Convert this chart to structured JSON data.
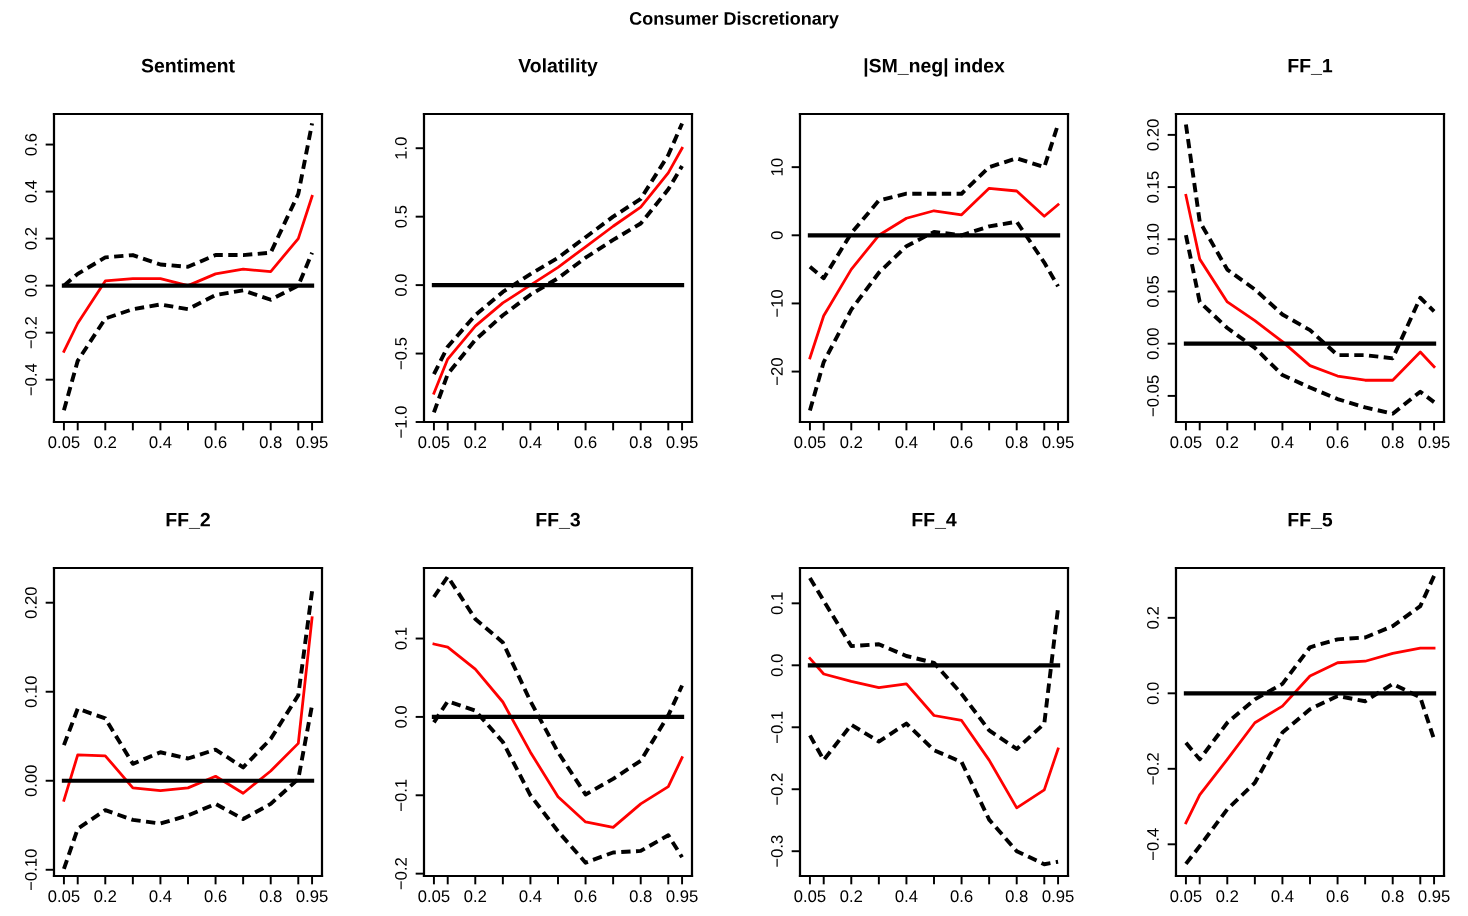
{
  "chart_data": [
    {
      "type": "line",
      "title": "Sentiment",
      "annotations": [
        "Consumer Discretionary"
      ],
      "x": [
        0.05,
        0.1,
        0.2,
        0.3,
        0.4,
        0.5,
        0.6,
        0.7,
        0.8,
        0.9,
        0.95
      ],
      "xlim": [
        0.014,
        0.986
      ],
      "xticks": [
        {
          "value": 0.05,
          "label": "0.05"
        },
        {
          "value": 0.1,
          "label": null
        },
        {
          "value": 0.2,
          "label": "0.2"
        },
        {
          "value": 0.3,
          "label": null
        },
        {
          "value": 0.4,
          "label": "0.4"
        },
        {
          "value": 0.5,
          "label": null
        },
        {
          "value": 0.6,
          "label": "0.6"
        },
        {
          "value": 0.7,
          "label": null
        },
        {
          "value": 0.8,
          "label": "0.8"
        },
        {
          "value": 0.9,
          "label": null
        },
        {
          "value": 0.95,
          "label": "0.95"
        }
      ],
      "ylim": [
        -0.58,
        0.73
      ],
      "yticks": [
        {
          "value": -0.4,
          "label": "−0.4"
        },
        {
          "value": -0.2,
          "label": "−0.2"
        },
        {
          "value": 0,
          "label": "0.0"
        },
        {
          "value": 0.2,
          "label": "0.2"
        },
        {
          "value": 0.4,
          "label": "0.4"
        },
        {
          "value": 0.6,
          "label": "0.6"
        }
      ],
      "ref_lines": [
        {
          "axis": "y",
          "value": 0,
          "color": "#000000"
        }
      ],
      "series": [
        {
          "color": "#ff0000",
          "line_style": "solid",
          "values": [
            -0.28,
            -0.16,
            0.02,
            0.03,
            0.03,
            0.0,
            0.05,
            0.07,
            0.06,
            0.2,
            0.38
          ]
        },
        {
          "color": "#000000",
          "line_style": "dashed",
          "values": [
            0.0,
            0.05,
            0.12,
            0.13,
            0.09,
            0.08,
            0.13,
            0.13,
            0.14,
            0.39,
            0.69
          ]
        },
        {
          "color": "#000000",
          "line_style": "dashed",
          "values": [
            -0.53,
            -0.32,
            -0.14,
            -0.1,
            -0.08,
            -0.1,
            -0.04,
            -0.02,
            -0.06,
            0.0,
            0.14
          ]
        }
      ]
    },
    {
      "type": "line",
      "title": "Volatility",
      "x": [
        0.05,
        0.1,
        0.2,
        0.3,
        0.4,
        0.5,
        0.6,
        0.7,
        0.8,
        0.9,
        0.95
      ],
      "xlim": [
        0.014,
        0.986
      ],
      "xticks": [
        {
          "value": 0.05,
          "label": "0.05"
        },
        {
          "value": 0.1,
          "label": null
        },
        {
          "value": 0.2,
          "label": "0.2"
        },
        {
          "value": 0.3,
          "label": null
        },
        {
          "value": 0.4,
          "label": "0.4"
        },
        {
          "value": 0.5,
          "label": null
        },
        {
          "value": 0.6,
          "label": "0.6"
        },
        {
          "value": 0.7,
          "label": null
        },
        {
          "value": 0.8,
          "label": "0.8"
        },
        {
          "value": 0.9,
          "label": null
        },
        {
          "value": 0.95,
          "label": "0.95"
        }
      ],
      "ylim": [
        -1.0,
        1.25
      ],
      "yticks": [
        {
          "value": -1,
          "label": "−1.0"
        },
        {
          "value": -0.5,
          "label": "−0.5"
        },
        {
          "value": 0,
          "label": "0.0"
        },
        {
          "value": 0.5,
          "label": "0.5"
        },
        {
          "value": 1,
          "label": "1.0"
        }
      ],
      "ref_lines": [
        {
          "axis": "y",
          "value": 0,
          "color": "#000000"
        }
      ],
      "series": [
        {
          "color": "#ff0000",
          "line_style": "solid",
          "values": [
            -0.79,
            -0.54,
            -0.3,
            -0.13,
            0.0,
            0.13,
            0.28,
            0.43,
            0.57,
            0.82,
            1.0
          ]
        },
        {
          "color": "#000000",
          "line_style": "dashed",
          "values": [
            -0.65,
            -0.45,
            -0.22,
            -0.05,
            0.08,
            0.2,
            0.35,
            0.5,
            0.63,
            0.95,
            1.18
          ]
        },
        {
          "color": "#000000",
          "line_style": "dashed",
          "values": [
            -0.93,
            -0.65,
            -0.4,
            -0.22,
            -0.07,
            0.05,
            0.2,
            0.33,
            0.45,
            0.7,
            0.87
          ]
        }
      ]
    },
    {
      "type": "line",
      "title": "|SM_neg| index",
      "x": [
        0.05,
        0.1,
        0.2,
        0.3,
        0.4,
        0.5,
        0.6,
        0.7,
        0.8,
        0.9,
        0.95
      ],
      "xlim": [
        0.014,
        0.986
      ],
      "xticks": [
        {
          "value": 0.05,
          "label": "0.05"
        },
        {
          "value": 0.1,
          "label": null
        },
        {
          "value": 0.2,
          "label": "0.2"
        },
        {
          "value": 0.3,
          "label": null
        },
        {
          "value": 0.4,
          "label": "0.4"
        },
        {
          "value": 0.5,
          "label": null
        },
        {
          "value": 0.6,
          "label": "0.6"
        },
        {
          "value": 0.7,
          "label": null
        },
        {
          "value": 0.8,
          "label": "0.8"
        },
        {
          "value": 0.9,
          "label": null
        },
        {
          "value": 0.95,
          "label": "0.95"
        }
      ],
      "ylim": [
        -27.4,
        17.8
      ],
      "yticks": [
        {
          "value": -20,
          "label": "−20"
        },
        {
          "value": -10,
          "label": "−10"
        },
        {
          "value": 0,
          "label": "0"
        },
        {
          "value": 10,
          "label": "10"
        }
      ],
      "ref_lines": [
        {
          "axis": "y",
          "value": 0,
          "color": "#000000"
        }
      ],
      "series": [
        {
          "color": "#ff0000",
          "line_style": "solid",
          "values": [
            -18,
            -11.8,
            -5,
            0,
            2.5,
            3.6,
            3,
            6.9,
            6.5,
            2.8,
            4.5
          ]
        },
        {
          "color": "#000000",
          "line_style": "dashed",
          "values": [
            -4.6,
            -6.3,
            0.3,
            5.1,
            6.1,
            6.1,
            6.1,
            10,
            11.3,
            10,
            16.3
          ]
        },
        {
          "color": "#000000",
          "line_style": "dashed",
          "values": [
            -25.7,
            -18.6,
            -10.9,
            -5.5,
            -1.6,
            0.5,
            0,
            1.3,
            2,
            -4,
            -7.5
          ]
        }
      ]
    },
    {
      "type": "line",
      "title": "FF_1",
      "x": [
        0.05,
        0.1,
        0.2,
        0.3,
        0.4,
        0.5,
        0.6,
        0.7,
        0.8,
        0.9,
        0.95
      ],
      "xlim": [
        0.014,
        0.986
      ],
      "xticks": [
        {
          "value": 0.05,
          "label": "0.05"
        },
        {
          "value": 0.1,
          "label": null
        },
        {
          "value": 0.2,
          "label": "0.2"
        },
        {
          "value": 0.3,
          "label": null
        },
        {
          "value": 0.4,
          "label": "0.4"
        },
        {
          "value": 0.5,
          "label": null
        },
        {
          "value": 0.6,
          "label": "0.6"
        },
        {
          "value": 0.7,
          "label": null
        },
        {
          "value": 0.8,
          "label": "0.8"
        },
        {
          "value": 0.9,
          "label": null
        },
        {
          "value": 0.95,
          "label": "0.95"
        }
      ],
      "ylim": [
        -0.075,
        0.22
      ],
      "yticks": [
        {
          "value": -0.05,
          "label": "−0.05"
        },
        {
          "value": 0,
          "label": "0.00"
        },
        {
          "value": 0.05,
          "label": "0.05"
        },
        {
          "value": 0.1,
          "label": "0.10"
        },
        {
          "value": 0.15,
          "label": "0.15"
        },
        {
          "value": 0.2,
          "label": "0.20"
        }
      ],
      "ref_lines": [
        {
          "axis": "y",
          "value": 0,
          "color": "#000000"
        }
      ],
      "series": [
        {
          "color": "#ff0000",
          "line_style": "solid",
          "values": [
            0.142,
            0.081,
            0.04,
            0.022,
            0.002,
            -0.021,
            -0.031,
            -0.035,
            -0.035,
            -0.008,
            -0.022
          ]
        },
        {
          "color": "#000000",
          "line_style": "dashed",
          "values": [
            0.21,
            0.117,
            0.071,
            0.052,
            0.028,
            0.013,
            -0.011,
            -0.011,
            -0.014,
            0.044,
            0.031
          ]
        },
        {
          "color": "#000000",
          "line_style": "dashed",
          "values": [
            0.104,
            0.04,
            0.015,
            -0.004,
            -0.03,
            -0.042,
            -0.053,
            -0.061,
            -0.067,
            -0.046,
            -0.056
          ]
        }
      ]
    },
    {
      "type": "line",
      "title": "FF_2",
      "x": [
        0.05,
        0.1,
        0.2,
        0.3,
        0.4,
        0.5,
        0.6,
        0.7,
        0.8,
        0.9,
        0.95
      ],
      "xlim": [
        0.014,
        0.986
      ],
      "xticks": [
        {
          "value": 0.05,
          "label": "0.05"
        },
        {
          "value": 0.1,
          "label": null
        },
        {
          "value": 0.2,
          "label": "0.2"
        },
        {
          "value": 0.3,
          "label": null
        },
        {
          "value": 0.4,
          "label": "0.4"
        },
        {
          "value": 0.5,
          "label": null
        },
        {
          "value": 0.6,
          "label": "0.6"
        },
        {
          "value": 0.7,
          "label": null
        },
        {
          "value": 0.8,
          "label": "0.8"
        },
        {
          "value": 0.9,
          "label": null
        },
        {
          "value": 0.95,
          "label": "0.95"
        }
      ],
      "ylim": [
        -0.107,
        0.239
      ],
      "yticks": [
        {
          "value": -0.1,
          "label": "−0.10"
        },
        {
          "value": 0,
          "label": "0.00"
        },
        {
          "value": 0.1,
          "label": "0.10"
        },
        {
          "value": 0.2,
          "label": "0.20"
        }
      ],
      "ref_lines": [
        {
          "axis": "y",
          "value": 0,
          "color": "#000000"
        }
      ],
      "series": [
        {
          "color": "#ff0000",
          "line_style": "solid",
          "values": [
            -0.022,
            0.029,
            0.028,
            -0.008,
            -0.011,
            -0.008,
            0.005,
            -0.014,
            0.011,
            0.042,
            0.183
          ]
        },
        {
          "color": "#000000",
          "line_style": "dashed",
          "values": [
            0.04,
            0.081,
            0.07,
            0.019,
            0.032,
            0.025,
            0.035,
            0.015,
            0.047,
            0.096,
            0.213
          ]
        },
        {
          "color": "#000000",
          "line_style": "dashed",
          "values": [
            -0.099,
            -0.054,
            -0.033,
            -0.044,
            -0.048,
            -0.039,
            -0.026,
            -0.043,
            -0.026,
            0.002,
            0.085
          ]
        }
      ]
    },
    {
      "type": "line",
      "title": "FF_3",
      "x": [
        0.05,
        0.1,
        0.2,
        0.3,
        0.4,
        0.5,
        0.6,
        0.7,
        0.8,
        0.9,
        0.95
      ],
      "xlim": [
        0.014,
        0.986
      ],
      "xticks": [
        {
          "value": 0.05,
          "label": "0.05"
        },
        {
          "value": 0.1,
          "label": null
        },
        {
          "value": 0.2,
          "label": "0.2"
        },
        {
          "value": 0.3,
          "label": null
        },
        {
          "value": 0.4,
          "label": "0.4"
        },
        {
          "value": 0.5,
          "label": null
        },
        {
          "value": 0.6,
          "label": "0.6"
        },
        {
          "value": 0.7,
          "label": null
        },
        {
          "value": 0.8,
          "label": "0.8"
        },
        {
          "value": 0.9,
          "label": null
        },
        {
          "value": 0.95,
          "label": "0.95"
        }
      ],
      "ylim": [
        -0.203,
        0.19
      ],
      "yticks": [
        {
          "value": -0.2,
          "label": "−0.2"
        },
        {
          "value": -0.1,
          "label": "−0.1"
        },
        {
          "value": 0,
          "label": "0.0"
        },
        {
          "value": 0.1,
          "label": "0.1"
        }
      ],
      "ref_lines": [
        {
          "axis": "y",
          "value": 0,
          "color": "#000000"
        }
      ],
      "series": [
        {
          "color": "#ff0000",
          "line_style": "solid",
          "values": [
            0.093,
            0.089,
            0.061,
            0.019,
            -0.045,
            -0.102,
            -0.134,
            -0.141,
            -0.111,
            -0.089,
            -0.052
          ]
        },
        {
          "color": "#000000",
          "line_style": "dashed",
          "values": [
            0.153,
            0.179,
            0.125,
            0.095,
            0.02,
            -0.045,
            -0.099,
            -0.079,
            -0.056,
            0.002,
            0.04
          ]
        },
        {
          "color": "#000000",
          "line_style": "dashed",
          "values": [
            -0.007,
            0.02,
            0.008,
            -0.032,
            -0.1,
            -0.146,
            -0.186,
            -0.173,
            -0.171,
            -0.151,
            -0.179
          ]
        }
      ]
    },
    {
      "type": "line",
      "title": "FF_4",
      "x": [
        0.05,
        0.1,
        0.2,
        0.3,
        0.4,
        0.5,
        0.6,
        0.7,
        0.8,
        0.9,
        0.95
      ],
      "xlim": [
        0.014,
        0.986
      ],
      "xticks": [
        {
          "value": 0.05,
          "label": "0.05"
        },
        {
          "value": 0.1,
          "label": null
        },
        {
          "value": 0.2,
          "label": "0.2"
        },
        {
          "value": 0.3,
          "label": null
        },
        {
          "value": 0.4,
          "label": "0.4"
        },
        {
          "value": 0.5,
          "label": null
        },
        {
          "value": 0.6,
          "label": "0.6"
        },
        {
          "value": 0.7,
          "label": null
        },
        {
          "value": 0.8,
          "label": "0.8"
        },
        {
          "value": 0.9,
          "label": null
        },
        {
          "value": 0.95,
          "label": "0.95"
        }
      ],
      "ylim": [
        -0.34,
        0.157
      ],
      "yticks": [
        {
          "value": -0.3,
          "label": "−0.3"
        },
        {
          "value": -0.2,
          "label": "−0.2"
        },
        {
          "value": -0.1,
          "label": "−0.1"
        },
        {
          "value": 0,
          "label": "0.0"
        },
        {
          "value": 0.1,
          "label": "0.1"
        }
      ],
      "ref_lines": [
        {
          "axis": "y",
          "value": 0,
          "color": "#000000"
        }
      ],
      "series": [
        {
          "color": "#ff0000",
          "line_style": "solid",
          "values": [
            0.011,
            -0.014,
            -0.026,
            -0.036,
            -0.03,
            -0.081,
            -0.089,
            -0.153,
            -0.23,
            -0.201,
            -0.135
          ]
        },
        {
          "color": "#000000",
          "line_style": "dashed",
          "values": [
            0.141,
            0.104,
            0.031,
            0.034,
            0.015,
            0.004,
            -0.046,
            -0.105,
            -0.135,
            -0.094,
            0.093
          ]
        },
        {
          "color": "#000000",
          "line_style": "dashed",
          "values": [
            -0.113,
            -0.153,
            -0.096,
            -0.123,
            -0.094,
            -0.137,
            -0.156,
            -0.249,
            -0.3,
            -0.321,
            -0.317
          ]
        }
      ]
    },
    {
      "type": "line",
      "title": "FF_5",
      "x": [
        0.05,
        0.1,
        0.2,
        0.3,
        0.4,
        0.5,
        0.6,
        0.7,
        0.8,
        0.9,
        0.95
      ],
      "xlim": [
        0.014,
        0.986
      ],
      "xticks": [
        {
          "value": 0.05,
          "label": "0.05"
        },
        {
          "value": 0.1,
          "label": null
        },
        {
          "value": 0.2,
          "label": "0.2"
        },
        {
          "value": 0.3,
          "label": null
        },
        {
          "value": 0.4,
          "label": "0.4"
        },
        {
          "value": 0.5,
          "label": null
        },
        {
          "value": 0.6,
          "label": "0.6"
        },
        {
          "value": 0.7,
          "label": null
        },
        {
          "value": 0.8,
          "label": "0.8"
        },
        {
          "value": 0.9,
          "label": null
        },
        {
          "value": 0.95,
          "label": "0.95"
        }
      ],
      "ylim": [
        -0.484,
        0.332
      ],
      "yticks": [
        {
          "value": -0.4,
          "label": "−0.4"
        },
        {
          "value": -0.2,
          "label": "−0.2"
        },
        {
          "value": 0,
          "label": "0.0"
        },
        {
          "value": 0.2,
          "label": "0.2"
        }
      ],
      "ref_lines": [
        {
          "axis": "y",
          "value": 0,
          "color": "#000000"
        }
      ],
      "series": [
        {
          "color": "#ff0000",
          "line_style": "solid",
          "values": [
            -0.343,
            -0.269,
            -0.175,
            -0.078,
            -0.034,
            0.046,
            0.081,
            0.085,
            0.106,
            0.12,
            0.12
          ]
        },
        {
          "color": "#000000",
          "line_style": "dashed",
          "values": [
            -0.131,
            -0.175,
            -0.078,
            -0.016,
            0.025,
            0.122,
            0.143,
            0.148,
            0.178,
            0.231,
            0.311
          ]
        },
        {
          "color": "#000000",
          "line_style": "dashed",
          "values": [
            -0.452,
            -0.405,
            -0.307,
            -0.237,
            -0.104,
            -0.042,
            -0.007,
            -0.021,
            0.025,
            -0.011,
            -0.122
          ]
        }
      ]
    }
  ]
}
